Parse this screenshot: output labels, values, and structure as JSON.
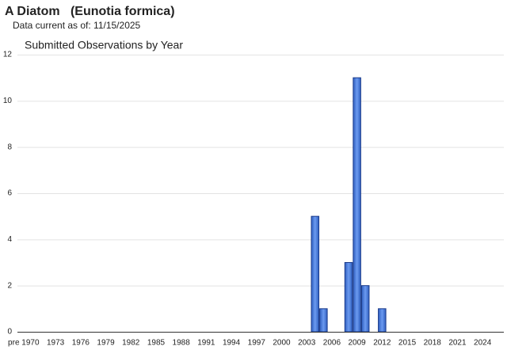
{
  "header": {
    "title": "A Diatom   (Eunotia formica)",
    "subtitle": "Data current as of: 11/15/2025"
  },
  "chart_data": {
    "type": "bar",
    "title": "Submitted Observations by Year",
    "categories": [
      "pre",
      null,
      "1970",
      null,
      null,
      "1973",
      null,
      null,
      "1976",
      null,
      null,
      "1979",
      null,
      null,
      "1982",
      null,
      null,
      "1985",
      null,
      null,
      "1988",
      null,
      null,
      "1991",
      null,
      null,
      "1994",
      null,
      null,
      "1997",
      null,
      null,
      "2000",
      null,
      null,
      "2003",
      null,
      null,
      "2006",
      null,
      null,
      "2009",
      null,
      null,
      "2012",
      null,
      null,
      "2015",
      null,
      null,
      "2018",
      null,
      null,
      "2021",
      null,
      null,
      "2024",
      null
    ],
    "values": [
      0,
      0,
      0,
      0,
      0,
      0,
      0,
      0,
      0,
      0,
      0,
      0,
      0,
      0,
      0,
      0,
      0,
      0,
      0,
      0,
      0,
      0,
      0,
      0,
      0,
      0,
      0,
      0,
      0,
      0,
      0,
      0,
      0,
      0,
      0,
      0,
      5,
      1,
      0,
      0,
      3,
      11,
      2,
      0,
      1,
      0,
      0,
      0,
      0,
      0,
      0,
      0,
      0,
      0,
      0,
      0,
      0,
      0
    ],
    "color": "#3c78d8",
    "ylim": [
      0,
      12
    ],
    "yticks": [
      0,
      2,
      4,
      6,
      8,
      10,
      12
    ],
    "grid": true
  }
}
